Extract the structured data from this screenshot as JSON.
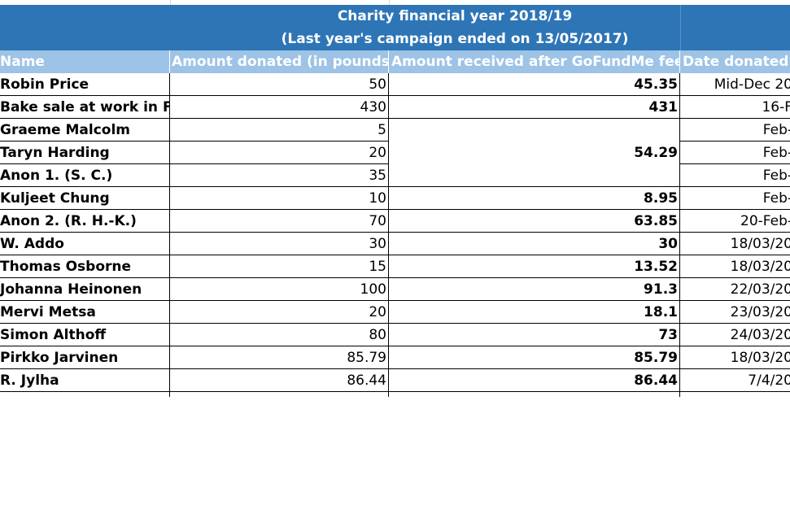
{
  "title": {
    "line1": "Charity financial year 2018/19",
    "line2": "(Last year's campaign ended on 13/05/2017)"
  },
  "headers": {
    "name": "Name",
    "amount_donated": "Amount donated (in pounds)",
    "amount_received": "Amount received after GoFundMe fees*",
    "date_donated": "Date donated"
  },
  "rows": [
    {
      "name": "Robin Price",
      "amount": "50",
      "received": "45.35",
      "date": "Mid-Dec 20"
    },
    {
      "name": "Bake sale at work in Feb",
      "amount": "430",
      "received": "431",
      "date": "16-F"
    },
    {
      "name": "Graeme Malcolm",
      "amount": "5",
      "received": "",
      "date": "Feb-"
    },
    {
      "name": "Taryn Harding",
      "amount": "20",
      "received": "",
      "date": "Feb-"
    },
    {
      "name": "Anon 1. (S. C.)",
      "amount": "35",
      "received": "",
      "date": "Feb-"
    },
    {
      "name": "Kuljeet Chung",
      "amount": "10",
      "received": "8.95",
      "date": "Feb-"
    },
    {
      "name": "Anon 2. (R. H.-K.)",
      "amount": "70",
      "received": "63.85",
      "date": "20-Feb-"
    },
    {
      "name": "W. Addo",
      "amount": "30",
      "received": "30",
      "date": "18/03/20"
    },
    {
      "name": "Thomas Osborne",
      "amount": "15",
      "received": "13.52",
      "date": "18/03/20"
    },
    {
      "name": "Johanna Heinonen",
      "amount": "100",
      "received": "91.3",
      "date": "22/03/20"
    },
    {
      "name": "Mervi Metsa",
      "amount": "20",
      "received": "18.1",
      "date": "23/03/20"
    },
    {
      "name": "Simon Althoff",
      "amount": "80",
      "received": "73",
      "date": "24/03/20"
    },
    {
      "name": "Pirkko Jarvinen",
      "amount": "85.79",
      "received": "85.79",
      "date": "18/03/20"
    },
    {
      "name": "R. Jylha",
      "amount": "86.44",
      "received": "86.44",
      "date": "7/4/20"
    }
  ],
  "merged_received": "54.29",
  "colors": {
    "title_band": "#2e75b6",
    "header_row": "#9dc3e6",
    "header_text": "#ffffff"
  }
}
